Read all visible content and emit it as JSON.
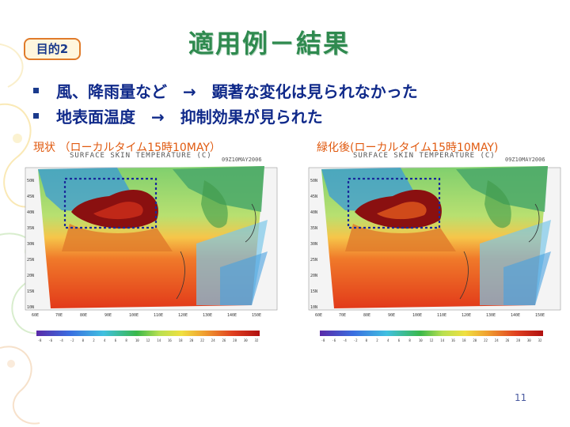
{
  "slide": {
    "badge": "目的2",
    "title": "適用例－結果",
    "bullets": [
      "風、降雨量など　→　顕著な変化は見られなかった",
      "地表面温度　→　抑制効果が見られた"
    ],
    "page_number": "11"
  },
  "panels": [
    {
      "caption": "現状 （ローカルタイム15時10MAY）",
      "map_title": "SURFACE SKIN TEMPERATURE (C)",
      "map_date": "09Z10MAY2006"
    },
    {
      "caption": "緑化後(ローカルタイム15時10MAY)",
      "map_title": "SURFACE SKIN TEMPERATURE (C)",
      "map_date": "09Z10MAY2006"
    }
  ],
  "map_axes": {
    "lat_labels": [
      "50N",
      "45N",
      "40N",
      "35N",
      "30N",
      "25N",
      "20N",
      "15N",
      "10N"
    ],
    "lon_labels": [
      "60E",
      "70E",
      "80E",
      "90E",
      "100E",
      "110E",
      "120E",
      "130E",
      "140E",
      "150E"
    ]
  },
  "colorbar_ticks": [
    "-8",
    "-6",
    "-4",
    "-2",
    "0",
    "2",
    "4",
    "6",
    "8",
    "10",
    "12",
    "14",
    "16",
    "18",
    "20",
    "22",
    "24",
    "26",
    "28",
    "30",
    "32"
  ],
  "colors": {
    "title": "#2f8a4f",
    "bullet_text": "#102a8a",
    "caption": "#e05a10",
    "badge_border": "#e07b2a",
    "highlight_box": "#1a2a9a"
  }
}
